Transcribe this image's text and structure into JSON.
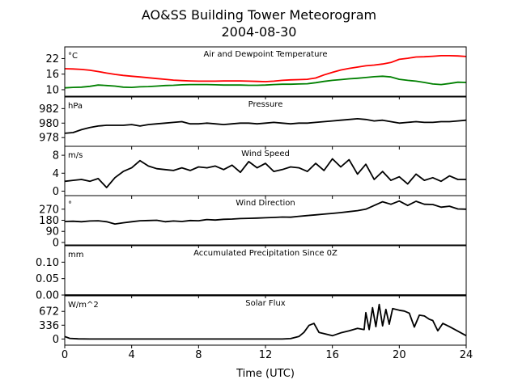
{
  "figure": {
    "title_line1": "AO&SS Building Tower Meteorogram",
    "title_line2": "2004-08-30",
    "xlabel": "Time (UTC)",
    "x_ticks": [
      "0",
      "4",
      "8",
      "12",
      "16",
      "20",
      "24"
    ]
  },
  "chart_data": [
    {
      "type": "line",
      "title": "Air and Dewpoint Temperature",
      "unit_label": "°C",
      "xlim": [
        0,
        24
      ],
      "ylim": [
        7.5,
        26.5
      ],
      "yticks": [
        10,
        16,
        22
      ],
      "ytick_labels": [
        "10",
        "16",
        "22"
      ],
      "series": [
        {
          "color": "#ff0000",
          "x": [
            0,
            0.5,
            1,
            1.5,
            2,
            2.5,
            3,
            3.5,
            4,
            4.5,
            5,
            5.5,
            6,
            6.5,
            7,
            7.5,
            8,
            8.5,
            9,
            9.5,
            10,
            10.5,
            11,
            11.5,
            12,
            12.5,
            13,
            13.5,
            14,
            14.5,
            15,
            15.5,
            16,
            16.5,
            17,
            17.5,
            18,
            18.5,
            19,
            19.5,
            20,
            20.5,
            21,
            21.5,
            22,
            22.5,
            23,
            23.5,
            24
          ],
          "y": [
            18.1,
            18.0,
            17.8,
            17.5,
            17.0,
            16.4,
            15.9,
            15.5,
            15.2,
            14.9,
            14.6,
            14.3,
            14.0,
            13.7,
            13.5,
            13.4,
            13.3,
            13.3,
            13.3,
            13.4,
            13.4,
            13.4,
            13.3,
            13.2,
            13.1,
            13.3,
            13.6,
            13.8,
            13.9,
            14.0,
            14.5,
            15.7,
            16.7,
            17.6,
            18.2,
            18.7,
            19.2,
            19.5,
            19.9,
            20.5,
            21.7,
            22.1,
            22.6,
            22.7,
            22.9,
            23.1,
            23.1,
            23.0,
            22.8
          ]
        },
        {
          "color": "#008000",
          "x": [
            0,
            0.5,
            1,
            1.5,
            2,
            2.5,
            3,
            3.5,
            4,
            4.5,
            5,
            5.5,
            6,
            6.5,
            7,
            7.5,
            8,
            8.5,
            9,
            9.5,
            10,
            10.5,
            11,
            11.5,
            12,
            12.5,
            13,
            13.5,
            14,
            14.5,
            15,
            15.5,
            16,
            16.5,
            17,
            17.5,
            18,
            18.5,
            19,
            19.5,
            20,
            20.5,
            21,
            21.5,
            22,
            22.5,
            23,
            23.5,
            24
          ],
          "y": [
            10.7,
            10.9,
            11.0,
            11.3,
            11.8,
            11.6,
            11.4,
            11.0,
            10.9,
            11.1,
            11.2,
            11.4,
            11.6,
            11.7,
            11.9,
            12.0,
            12.0,
            12.0,
            11.9,
            11.8,
            11.8,
            11.8,
            11.7,
            11.7,
            11.8,
            12.0,
            12.1,
            12.1,
            12.2,
            12.3,
            12.7,
            13.2,
            13.6,
            13.9,
            14.2,
            14.4,
            14.7,
            15.0,
            15.2,
            14.9,
            14.0,
            13.6,
            13.3,
            12.8,
            12.2,
            12.0,
            12.4,
            12.9,
            12.8
          ]
        }
      ]
    },
    {
      "type": "line",
      "title": "Pressure",
      "unit_label": "hPa",
      "xlim": [
        0,
        24
      ],
      "ylim": [
        976.8,
        983.6
      ],
      "yticks": [
        978,
        980,
        982
      ],
      "ytick_labels": [
        "978",
        "980",
        "982"
      ],
      "series": [
        {
          "color": "#000000",
          "x": [
            0,
            0.5,
            1,
            1.5,
            2,
            2.5,
            3,
            3.5,
            4,
            4.5,
            5,
            5.5,
            6,
            6.5,
            7,
            7.5,
            8,
            8.5,
            9,
            9.5,
            10,
            10.5,
            11,
            11.5,
            12,
            12.5,
            13,
            13.5,
            14,
            14.5,
            15,
            15.5,
            16,
            16.5,
            17,
            17.5,
            18,
            18.5,
            19,
            19.5,
            20,
            20.5,
            21,
            21.5,
            22,
            22.5,
            23,
            23.5,
            24
          ],
          "y": [
            978.6,
            978.7,
            979.1,
            979.4,
            979.6,
            979.7,
            979.7,
            979.7,
            979.8,
            979.6,
            979.8,
            979.9,
            980.0,
            980.1,
            980.2,
            979.9,
            979.9,
            980.0,
            979.9,
            979.8,
            979.9,
            980.0,
            980.0,
            979.9,
            980.0,
            980.1,
            980.0,
            979.9,
            980.0,
            980.0,
            980.1,
            980.2,
            980.3,
            980.4,
            980.5,
            980.6,
            980.5,
            980.3,
            980.4,
            980.2,
            980.0,
            980.1,
            980.2,
            980.1,
            980.1,
            980.2,
            980.2,
            980.3,
            980.4
          ]
        }
      ]
    },
    {
      "type": "line",
      "title": "Wind Speed",
      "unit_label": "m/s",
      "xlim": [
        0,
        24
      ],
      "ylim": [
        -1,
        10
      ],
      "yticks": [
        0,
        4,
        8
      ],
      "ytick_labels": [
        "0",
        "4",
        "8"
      ],
      "series": [
        {
          "color": "#000000",
          "x": [
            0,
            0.5,
            1,
            1.5,
            2,
            2.5,
            3,
            3.5,
            4,
            4.5,
            5,
            5.5,
            6,
            6.5,
            7,
            7.5,
            8,
            8.5,
            9,
            9.5,
            10,
            10.5,
            11,
            11.5,
            12,
            12.5,
            13,
            13.5,
            14,
            14.5,
            15,
            15.5,
            16,
            16.5,
            17,
            17.5,
            18,
            18.5,
            19,
            19.5,
            20,
            20.5,
            21,
            21.5,
            22,
            22.5,
            23,
            23.5,
            24
          ],
          "y": [
            2.2,
            2.4,
            2.6,
            2.2,
            2.8,
            0.8,
            3.0,
            4.4,
            5.2,
            6.8,
            5.6,
            5.0,
            4.8,
            4.6,
            5.2,
            4.6,
            5.4,
            5.2,
            5.6,
            4.8,
            5.8,
            4.2,
            6.6,
            5.2,
            6.2,
            4.4,
            4.8,
            5.4,
            5.2,
            4.4,
            6.2,
            4.6,
            7.2,
            5.4,
            7.0,
            3.8,
            6.0,
            2.6,
            4.4,
            2.4,
            3.2,
            1.6,
            3.8,
            2.4,
            3.0,
            2.2,
            3.4,
            2.6,
            2.6
          ]
        }
      ]
    },
    {
      "type": "line",
      "title": "Wind Direction",
      "unit_label": "°",
      "xlim": [
        0,
        24
      ],
      "ylim": [
        -20,
        380
      ],
      "yticks": [
        0,
        90,
        180,
        270
      ],
      "ytick_labels": [
        "0",
        "90",
        "180",
        "270"
      ],
      "series": [
        {
          "color": "#000000",
          "x": [
            0,
            0.5,
            1,
            1.5,
            2,
            2.5,
            3,
            3.5,
            4,
            4.5,
            5,
            5.5,
            6,
            6.5,
            7,
            7.5,
            8,
            8.5,
            9,
            9.5,
            10,
            10.5,
            11,
            11.5,
            12,
            12.5,
            13,
            13.5,
            14,
            14.5,
            15,
            15.5,
            16,
            16.5,
            17,
            17.5,
            18,
            18.5,
            19,
            19.5,
            20,
            20.5,
            21,
            21.5,
            22,
            22.5,
            23,
            23.5,
            24
          ],
          "y": [
            170,
            172,
            168,
            174,
            176,
            168,
            150,
            160,
            168,
            176,
            178,
            180,
            168,
            174,
            170,
            178,
            176,
            186,
            182,
            188,
            190,
            194,
            196,
            198,
            200,
            203,
            206,
            205,
            212,
            218,
            224,
            230,
            236,
            242,
            250,
            258,
            270,
            300,
            330,
            310,
            336,
            300,
            334,
            310,
            308,
            286,
            294,
            272,
            270
          ]
        }
      ]
    },
    {
      "type": "line",
      "title": "Accumulated Precipitation Since 0Z",
      "unit_label": "mm",
      "xlim": [
        0,
        24
      ],
      "ylim": [
        0,
        0.15
      ],
      "yticks": [
        0,
        0.05,
        0.1
      ],
      "ytick_labels": [
        "0.00",
        "0.05",
        "0.10"
      ],
      "series": [
        {
          "color": "#000000",
          "x": [
            0,
            24
          ],
          "y": [
            0,
            0
          ]
        }
      ]
    },
    {
      "type": "line",
      "title": "Solar Flux",
      "unit_label": "W/m^2",
      "xlim": [
        0,
        24
      ],
      "ylim": [
        -150,
        1050
      ],
      "yticks": [
        0,
        336,
        672
      ],
      "ytick_labels": [
        "0",
        "336",
        "672"
      ],
      "series": [
        {
          "color": "#000000",
          "x": [
            0,
            0.3,
            0.8,
            1.5,
            2,
            3,
            4,
            5,
            6,
            7,
            8,
            9,
            10,
            11,
            12,
            13,
            13.5,
            14,
            14.3,
            14.6,
            14.9,
            15.2,
            15.6,
            16,
            16.5,
            17,
            17.5,
            17.9,
            18,
            18.2,
            18.4,
            18.6,
            18.8,
            19,
            19.2,
            19.4,
            19.6,
            20,
            20.3,
            20.6,
            20.9,
            21.2,
            21.5,
            21.8,
            22,
            22.3,
            22.6,
            23,
            23.5,
            24
          ],
          "y": [
            60,
            15,
            3,
            0,
            0,
            0,
            0,
            0,
            0,
            0,
            0,
            0,
            0,
            0,
            0,
            0,
            10,
            60,
            160,
            330,
            380,
            160,
            120,
            80,
            150,
            200,
            260,
            230,
            640,
            230,
            760,
            300,
            840,
            320,
            720,
            360,
            740,
            700,
            680,
            630,
            290,
            580,
            560,
            480,
            450,
            200,
            380,
            300,
            190,
            80
          ]
        }
      ]
    }
  ]
}
